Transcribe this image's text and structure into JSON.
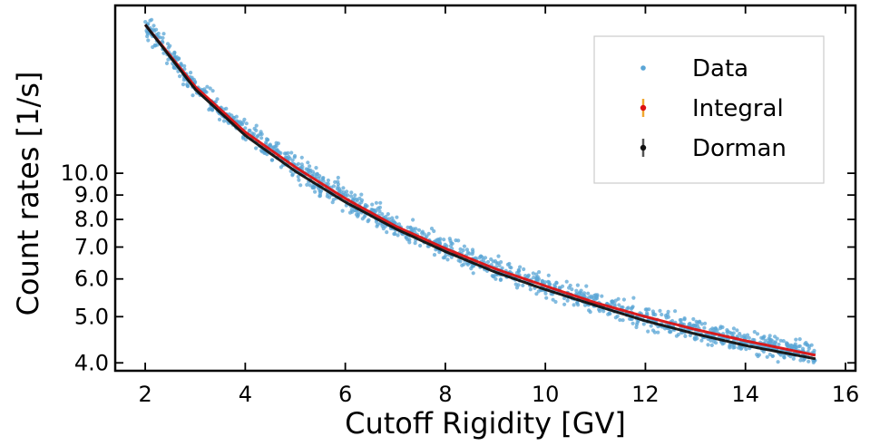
{
  "chart_data": {
    "type": "scatter",
    "xlabel": "Cutoff Rigidity [GV]",
    "ylabel": "Count rates [1/s]",
    "xlim": [
      1.4,
      16.2
    ],
    "ylim": [
      3.85,
      22.5
    ],
    "yscale": "log",
    "x_ticks": [
      2,
      4,
      6,
      8,
      10,
      12,
      14,
      16
    ],
    "x_tick_labels": [
      "2",
      "4",
      "6",
      "8",
      "10",
      "12",
      "14",
      "16"
    ],
    "y_ticks": [
      4.0,
      5.0,
      6.0,
      7.0,
      8.0,
      9.0,
      10.0
    ],
    "y_tick_labels": [
      "4.0",
      "5.0",
      "6.0",
      "7.0",
      "8.0",
      "9.0",
      "10.0"
    ],
    "grid": false,
    "legend": {
      "placement": "top-right",
      "entries": [
        "Data",
        "Integral",
        "Dorman"
      ]
    },
    "series": [
      {
        "name": "Data",
        "kind": "scatter",
        "color": "#5aa5d6",
        "x_range": [
          2.0,
          15.4
        ],
        "approx_points": 1400,
        "spread_fraction": 0.045
      },
      {
        "name": "Integral",
        "kind": "line",
        "color": "#dd1111",
        "x": [
          2,
          3,
          4,
          5,
          6,
          7,
          8,
          9,
          10,
          11,
          12,
          13,
          14,
          15.4
        ],
        "y": [
          20.5,
          15.2,
          12.2,
          10.3,
          8.85,
          7.75,
          6.95,
          6.3,
          5.8,
          5.35,
          5.0,
          4.7,
          4.45,
          4.15
        ]
      },
      {
        "name": "Dorman",
        "kind": "line",
        "color": "#111111",
        "x": [
          2,
          3,
          4,
          5,
          6,
          7,
          8,
          9,
          10,
          11,
          12,
          13,
          14,
          15.4
        ],
        "y": [
          20.5,
          15.0,
          12.0,
          10.1,
          8.7,
          7.65,
          6.85,
          6.2,
          5.7,
          5.28,
          4.9,
          4.6,
          4.35,
          4.08
        ]
      }
    ]
  }
}
